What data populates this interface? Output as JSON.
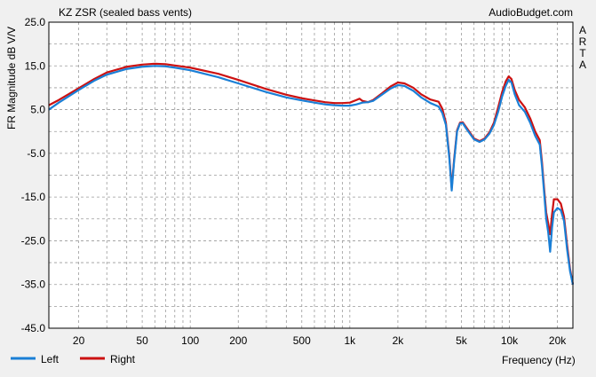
{
  "chart_data": {
    "type": "line",
    "title": "KZ ZSR (sealed bass vents)",
    "source_label": "AudioBudget.com",
    "side_label": "ARTA",
    "xlabel": "Frequency (Hz)",
    "ylabel": "FR Magnitude dB V/V",
    "x_scale": "log",
    "xlim": [
      13,
      25000
    ],
    "ylim": [
      -45,
      25
    ],
    "grid": true,
    "y_ticks": [
      {
        "value": 25,
        "label": "25.0"
      },
      {
        "value": 15,
        "label": "15.0"
      },
      {
        "value": 5,
        "label": "5.0"
      },
      {
        "value": -5,
        "label": "-5.0"
      },
      {
        "value": -15,
        "label": "-15.0"
      },
      {
        "value": -25,
        "label": "-25.0"
      },
      {
        "value": -35,
        "label": "-35.0"
      },
      {
        "value": -45,
        "label": "-45.0"
      }
    ],
    "x_ticks": [
      {
        "value": 20,
        "label": "20"
      },
      {
        "value": 50,
        "label": "50"
      },
      {
        "value": 100,
        "label": "100"
      },
      {
        "value": 200,
        "label": "200"
      },
      {
        "value": 500,
        "label": "500"
      },
      {
        "value": 1000,
        "label": "1k"
      },
      {
        "value": 2000,
        "label": "2k"
      },
      {
        "value": 5000,
        "label": "5k"
      },
      {
        "value": 10000,
        "label": "10k"
      },
      {
        "value": 20000,
        "label": "20k"
      }
    ],
    "legend_position": "bottom-left",
    "series": [
      {
        "name": "Left",
        "color": "#1a7fd6",
        "points": [
          [
            13,
            5.0
          ],
          [
            15,
            6.6
          ],
          [
            20,
            9.5
          ],
          [
            25,
            11.6
          ],
          [
            30,
            13.0
          ],
          [
            40,
            14.3
          ],
          [
            50,
            14.8
          ],
          [
            60,
            15.0
          ],
          [
            70,
            14.9
          ],
          [
            80,
            14.6
          ],
          [
            100,
            14.0
          ],
          [
            150,
            12.4
          ],
          [
            200,
            11.0
          ],
          [
            300,
            9.0
          ],
          [
            400,
            7.8
          ],
          [
            500,
            7.1
          ],
          [
            600,
            6.6
          ],
          [
            700,
            6.2
          ],
          [
            800,
            6.0
          ],
          [
            900,
            5.9
          ],
          [
            1000,
            5.9
          ],
          [
            1100,
            6.2
          ],
          [
            1200,
            6.6
          ],
          [
            1300,
            6.7
          ],
          [
            1400,
            7.0
          ],
          [
            1600,
            8.5
          ],
          [
            1800,
            9.8
          ],
          [
            2000,
            10.6
          ],
          [
            2200,
            10.4
          ],
          [
            2500,
            9.3
          ],
          [
            2800,
            7.8
          ],
          [
            3200,
            6.5
          ],
          [
            3600,
            5.7
          ],
          [
            3800,
            4.2
          ],
          [
            4000,
            1.5
          ],
          [
            4200,
            -6.0
          ],
          [
            4350,
            -13.5
          ],
          [
            4500,
            -7.0
          ],
          [
            4700,
            0.0
          ],
          [
            4900,
            1.8
          ],
          [
            5100,
            1.9
          ],
          [
            5400,
            0.5
          ],
          [
            6000,
            -1.8
          ],
          [
            6500,
            -2.4
          ],
          [
            7000,
            -1.8
          ],
          [
            7500,
            -0.5
          ],
          [
            8000,
            1.5
          ],
          [
            8500,
            4.5
          ],
          [
            9000,
            8.0
          ],
          [
            9500,
            10.5
          ],
          [
            9900,
            11.8
          ],
          [
            10300,
            11.2
          ],
          [
            10800,
            8.5
          ],
          [
            11500,
            6.0
          ],
          [
            12500,
            4.5
          ],
          [
            13500,
            2.0
          ],
          [
            14500,
            -1.0
          ],
          [
            15500,
            -3.0
          ],
          [
            16000,
            -8.0
          ],
          [
            16500,
            -14.0
          ],
          [
            17000,
            -20.0
          ],
          [
            17500,
            -23.0
          ],
          [
            18000,
            -27.5
          ],
          [
            18500,
            -22.0
          ],
          [
            19000,
            -18.5
          ],
          [
            20000,
            -17.5
          ],
          [
            21000,
            -18.0
          ],
          [
            22000,
            -20.5
          ],
          [
            23000,
            -27.0
          ],
          [
            24000,
            -32.0
          ],
          [
            25000,
            -35.0
          ]
        ]
      },
      {
        "name": "Right",
        "color": "#cc1111",
        "points": [
          [
            13,
            6.0
          ],
          [
            15,
            7.2
          ],
          [
            20,
            9.9
          ],
          [
            25,
            12.0
          ],
          [
            30,
            13.5
          ],
          [
            40,
            14.8
          ],
          [
            50,
            15.3
          ],
          [
            60,
            15.5
          ],
          [
            70,
            15.4
          ],
          [
            80,
            15.1
          ],
          [
            100,
            14.6
          ],
          [
            150,
            13.2
          ],
          [
            200,
            11.8
          ],
          [
            300,
            9.7
          ],
          [
            400,
            8.4
          ],
          [
            500,
            7.6
          ],
          [
            600,
            7.1
          ],
          [
            700,
            6.7
          ],
          [
            800,
            6.5
          ],
          [
            900,
            6.5
          ],
          [
            1000,
            6.6
          ],
          [
            1100,
            7.2
          ],
          [
            1150,
            7.5
          ],
          [
            1200,
            7.0
          ],
          [
            1300,
            6.7
          ],
          [
            1400,
            7.2
          ],
          [
            1600,
            8.8
          ],
          [
            1800,
            10.3
          ],
          [
            2000,
            11.2
          ],
          [
            2200,
            11.0
          ],
          [
            2500,
            10.0
          ],
          [
            2800,
            8.5
          ],
          [
            3200,
            7.3
          ],
          [
            3600,
            6.8
          ],
          [
            3800,
            5.2
          ],
          [
            4000,
            2.0
          ],
          [
            4200,
            -5.5
          ],
          [
            4350,
            -13.0
          ],
          [
            4500,
            -6.5
          ],
          [
            4700,
            0.3
          ],
          [
            4900,
            2.0
          ],
          [
            5100,
            2.1
          ],
          [
            5400,
            0.8
          ],
          [
            6000,
            -1.6
          ],
          [
            6500,
            -2.2
          ],
          [
            7000,
            -1.6
          ],
          [
            7500,
            -0.2
          ],
          [
            8000,
            2.0
          ],
          [
            8500,
            5.5
          ],
          [
            9000,
            9.0
          ],
          [
            9500,
            11.5
          ],
          [
            9900,
            12.6
          ],
          [
            10300,
            12.0
          ],
          [
            10800,
            9.5
          ],
          [
            11500,
            7.2
          ],
          [
            12500,
            5.5
          ],
          [
            13500,
            3.0
          ],
          [
            14500,
            0.0
          ],
          [
            15500,
            -2.0
          ],
          [
            16000,
            -7.0
          ],
          [
            16500,
            -13.0
          ],
          [
            17000,
            -18.5
          ],
          [
            17500,
            -21.0
          ],
          [
            18000,
            -23.5
          ],
          [
            18500,
            -19.0
          ],
          [
            19000,
            -15.5
          ],
          [
            20000,
            -15.5
          ],
          [
            21000,
            -16.5
          ],
          [
            22000,
            -19.5
          ],
          [
            23000,
            -26.0
          ],
          [
            24000,
            -31.5
          ],
          [
            25000,
            -35.0
          ]
        ]
      }
    ]
  }
}
